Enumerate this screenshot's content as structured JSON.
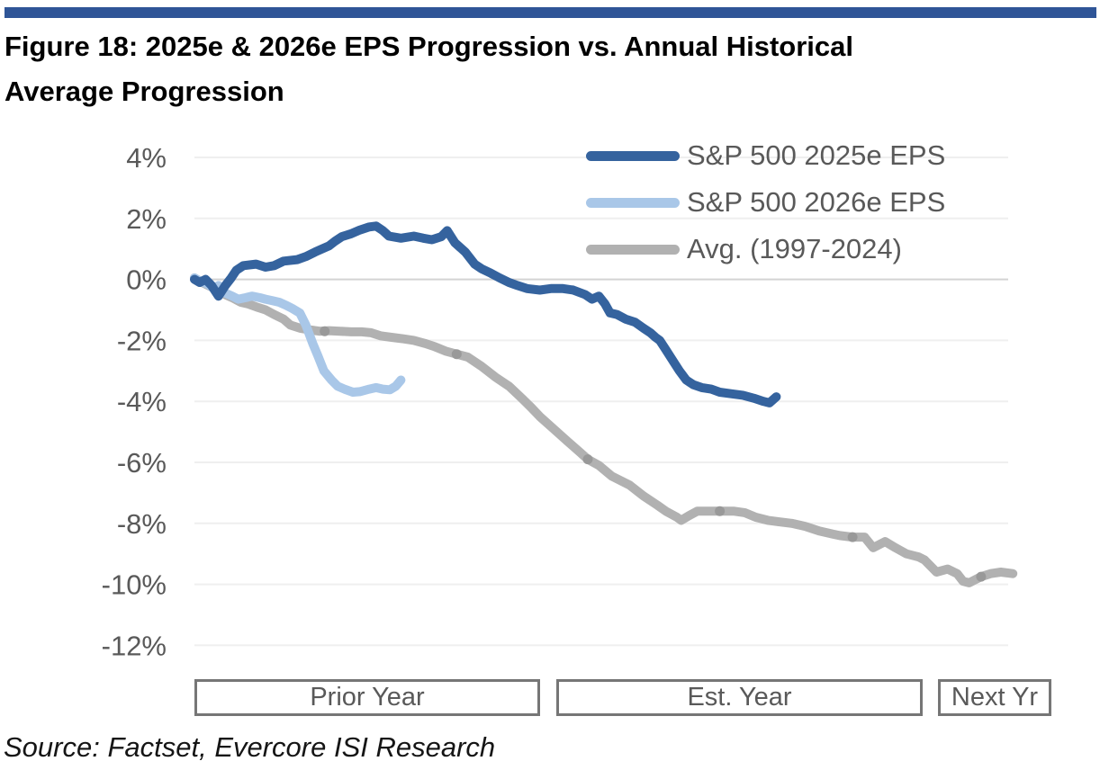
{
  "header": {
    "title_line1": "Figure 18:  2025e & 2026e EPS Progression vs. Annual Historical",
    "title_line2": "Average Progression",
    "accent_bar_color": "#2F5597"
  },
  "source_line": "Source: Factset, Evercore ISI Research",
  "chart_data": {
    "type": "line",
    "title": "2025e & 2026e EPS Progression vs. Annual Historical Average Progression",
    "y_axis": {
      "unit": "%",
      "ticks": [
        4,
        2,
        0,
        -2,
        -4,
        -6,
        -8,
        -10,
        -12
      ],
      "tick_labels": [
        "4%",
        "2%",
        "0%",
        "-2%",
        "-4%",
        "-6%",
        "-8%",
        "-10%",
        "-12%"
      ],
      "range": [
        -12,
        4
      ],
      "grid": true,
      "grid_color": "#EFEFEF",
      "zero_line_color": "#D3D3D3"
    },
    "x_axis": {
      "note": "x = percent of full timeline (Prior Year through Next Yr), no numeric ticks shown",
      "domain": [
        0,
        100
      ],
      "zones": [
        {
          "label": "Prior Year",
          "span_pct": [
            0,
            40.3
          ]
        },
        {
          "label": "Est. Year",
          "span_pct": [
            42.2,
            85.0
          ]
        },
        {
          "label": "Next Yr",
          "span_pct": [
            86.8,
            100
          ]
        }
      ]
    },
    "legend": {
      "position": "top-right",
      "entries": [
        {
          "label": "S&P 500 2025e EPS",
          "color": "#35639E"
        },
        {
          "label": "S&P 500 2026e EPS",
          "color": "#A9C7E8"
        },
        {
          "label": "Avg. (1997-2024)",
          "color": "#B1B1B1"
        }
      ]
    },
    "series": [
      {
        "id": "avg-1997-2024",
        "name": "Avg. (1997-2024)",
        "color": "#B1B1B1",
        "stroke_width": 10,
        "points": [
          [
            0,
            0.05
          ],
          [
            0.9,
            -0.1
          ],
          [
            2,
            -0.25
          ],
          [
            2.8,
            -0.35
          ],
          [
            3.6,
            -0.5
          ],
          [
            4.4,
            -0.6
          ],
          [
            5.4,
            -0.75
          ],
          [
            6.2,
            -0.8
          ],
          [
            7.2,
            -0.9
          ],
          [
            8.3,
            -1.0
          ],
          [
            9.3,
            -1.15
          ],
          [
            10.4,
            -1.3
          ],
          [
            11.2,
            -1.5
          ],
          [
            12.3,
            -1.6
          ],
          [
            13.3,
            -1.65
          ],
          [
            14.6,
            -1.7
          ],
          [
            15.7,
            -1.68
          ],
          [
            17,
            -1.7
          ],
          [
            18.3,
            -1.72
          ],
          [
            19.5,
            -1.72
          ],
          [
            20.6,
            -1.75
          ],
          [
            21.7,
            -1.85
          ],
          [
            23,
            -1.9
          ],
          [
            24.4,
            -1.95
          ],
          [
            25.6,
            -2.0
          ],
          [
            26.9,
            -2.1
          ],
          [
            28,
            -2.2
          ],
          [
            29.3,
            -2.35
          ],
          [
            30.6,
            -2.45
          ],
          [
            31.9,
            -2.55
          ],
          [
            33.5,
            -2.85
          ],
          [
            35.1,
            -3.2
          ],
          [
            36.7,
            -3.5
          ],
          [
            38.2,
            -3.9
          ],
          [
            39.3,
            -4.2
          ],
          [
            40.3,
            -4.5
          ],
          [
            41.9,
            -4.9
          ],
          [
            43.5,
            -5.3
          ],
          [
            45.1,
            -5.7
          ],
          [
            45.9,
            -5.9
          ],
          [
            47.2,
            -6.1
          ],
          [
            48.7,
            -6.45
          ],
          [
            50.8,
            -6.75
          ],
          [
            52.4,
            -7.1
          ],
          [
            54,
            -7.4
          ],
          [
            55,
            -7.6
          ],
          [
            56.3,
            -7.8
          ],
          [
            56.8,
            -7.9
          ],
          [
            57.7,
            -7.75
          ],
          [
            58.7,
            -7.6
          ],
          [
            60.3,
            -7.6
          ],
          [
            61.3,
            -7.6
          ],
          [
            62.9,
            -7.6
          ],
          [
            64.2,
            -7.65
          ],
          [
            65.5,
            -7.8
          ],
          [
            66.9,
            -7.9
          ],
          [
            68.2,
            -7.95
          ],
          [
            69.7,
            -8.0
          ],
          [
            71.3,
            -8.1
          ],
          [
            72.9,
            -8.25
          ],
          [
            74.5,
            -8.35
          ],
          [
            75.3,
            -8.4
          ],
          [
            76.8,
            -8.45
          ],
          [
            78.2,
            -8.45
          ],
          [
            79.2,
            -8.8
          ],
          [
            80.6,
            -8.6
          ],
          [
            81.8,
            -8.8
          ],
          [
            83.1,
            -9.0
          ],
          [
            84.5,
            -9.1
          ],
          [
            85.2,
            -9.2
          ],
          [
            86.6,
            -9.6
          ],
          [
            87.9,
            -9.5
          ],
          [
            89,
            -9.65
          ],
          [
            89.7,
            -9.9
          ],
          [
            90.4,
            -9.95
          ],
          [
            91.8,
            -9.75
          ],
          [
            92.9,
            -9.65
          ],
          [
            94.1,
            -9.6
          ],
          [
            95.5,
            -9.65
          ]
        ]
      },
      {
        "id": "sp500-2026e",
        "name": "S&P 500 2026e EPS",
        "color": "#A9C7E8",
        "stroke_width": 10,
        "points": [
          [
            0,
            0.05
          ],
          [
            0.6,
            -0.05
          ],
          [
            1.5,
            -0.15
          ],
          [
            2.3,
            -0.3
          ],
          [
            2.8,
            -0.2
          ],
          [
            3.6,
            -0.45
          ],
          [
            4.4,
            -0.55
          ],
          [
            5.1,
            -0.65
          ],
          [
            6,
            -0.6
          ],
          [
            6.7,
            -0.55
          ],
          [
            7.6,
            -0.6
          ],
          [
            8.3,
            -0.65
          ],
          [
            9.1,
            -0.7
          ],
          [
            9.9,
            -0.75
          ],
          [
            10.7,
            -0.85
          ],
          [
            11.4,
            -0.95
          ],
          [
            12.3,
            -1.1
          ],
          [
            13,
            -1.5
          ],
          [
            13.8,
            -2.1
          ],
          [
            14.4,
            -2.5
          ],
          [
            15.1,
            -3.0
          ],
          [
            16,
            -3.3
          ],
          [
            16.7,
            -3.5
          ],
          [
            17.5,
            -3.6
          ],
          [
            18.5,
            -3.7
          ],
          [
            19.3,
            -3.68
          ],
          [
            20.4,
            -3.6
          ],
          [
            21.2,
            -3.55
          ],
          [
            22,
            -3.6
          ],
          [
            22.8,
            -3.62
          ],
          [
            23.5,
            -3.5
          ],
          [
            24.1,
            -3.3
          ]
        ]
      },
      {
        "id": "sp500-2025e",
        "name": "S&P 500 2025e EPS",
        "color": "#35639E",
        "stroke_width": 10,
        "points": [
          [
            0,
            0.0
          ],
          [
            0.6,
            -0.1
          ],
          [
            1.3,
            0.0
          ],
          [
            2,
            -0.2
          ],
          [
            2.8,
            -0.55
          ],
          [
            3.6,
            -0.2
          ],
          [
            4.3,
            0.05
          ],
          [
            4.9,
            0.3
          ],
          [
            5.7,
            0.45
          ],
          [
            7.2,
            0.5
          ],
          [
            8.3,
            0.4
          ],
          [
            9.3,
            0.45
          ],
          [
            10.4,
            0.6
          ],
          [
            12,
            0.65
          ],
          [
            13,
            0.75
          ],
          [
            14.1,
            0.9
          ],
          [
            14.9,
            1.0
          ],
          [
            15.7,
            1.1
          ],
          [
            16.4,
            1.25
          ],
          [
            17.2,
            1.4
          ],
          [
            18.3,
            1.5
          ],
          [
            19.3,
            1.62
          ],
          [
            20.4,
            1.72
          ],
          [
            21.2,
            1.75
          ],
          [
            22,
            1.6
          ],
          [
            22.7,
            1.42
          ],
          [
            24.1,
            1.35
          ],
          [
            25.6,
            1.42
          ],
          [
            26.7,
            1.35
          ],
          [
            27.7,
            1.3
          ],
          [
            28.8,
            1.4
          ],
          [
            29.5,
            1.6
          ],
          [
            30.4,
            1.2
          ],
          [
            31.6,
            0.9
          ],
          [
            32.7,
            0.5
          ],
          [
            33.5,
            0.35
          ],
          [
            34.6,
            0.2
          ],
          [
            35.6,
            0.05
          ],
          [
            36.7,
            -0.1
          ],
          [
            37.7,
            -0.2
          ],
          [
            38.8,
            -0.3
          ],
          [
            40.3,
            -0.35
          ],
          [
            41.6,
            -0.3
          ],
          [
            43,
            -0.3
          ],
          [
            44.2,
            -0.35
          ],
          [
            45.6,
            -0.5
          ],
          [
            46.4,
            -0.65
          ],
          [
            47.2,
            -0.55
          ],
          [
            47.9,
            -0.8
          ],
          [
            48.5,
            -1.1
          ],
          [
            49.3,
            -1.15
          ],
          [
            50.3,
            -1.3
          ],
          [
            51.4,
            -1.4
          ],
          [
            52.4,
            -1.6
          ],
          [
            53.2,
            -1.75
          ],
          [
            53.8,
            -1.9
          ],
          [
            54.3,
            -2.0
          ],
          [
            55,
            -2.3
          ],
          [
            55.9,
            -2.7
          ],
          [
            56.6,
            -3.0
          ],
          [
            57.4,
            -3.3
          ],
          [
            58.2,
            -3.45
          ],
          [
            59.2,
            -3.55
          ],
          [
            60.3,
            -3.6
          ],
          [
            61.3,
            -3.7
          ],
          [
            62.6,
            -3.75
          ],
          [
            64,
            -3.8
          ],
          [
            65.3,
            -3.9
          ],
          [
            66.4,
            -4.0
          ],
          [
            67.1,
            -4.05
          ],
          [
            67.9,
            -3.85
          ]
        ]
      }
    ],
    "avg_markers": {
      "color": "#999999",
      "points": [
        [
          15.2,
          -1.7
        ],
        [
          30.6,
          -2.45
        ],
        [
          45.9,
          -5.9
        ],
        [
          61.3,
          -7.6
        ],
        [
          76.8,
          -8.45
        ],
        [
          91.8,
          -9.75
        ]
      ]
    }
  }
}
